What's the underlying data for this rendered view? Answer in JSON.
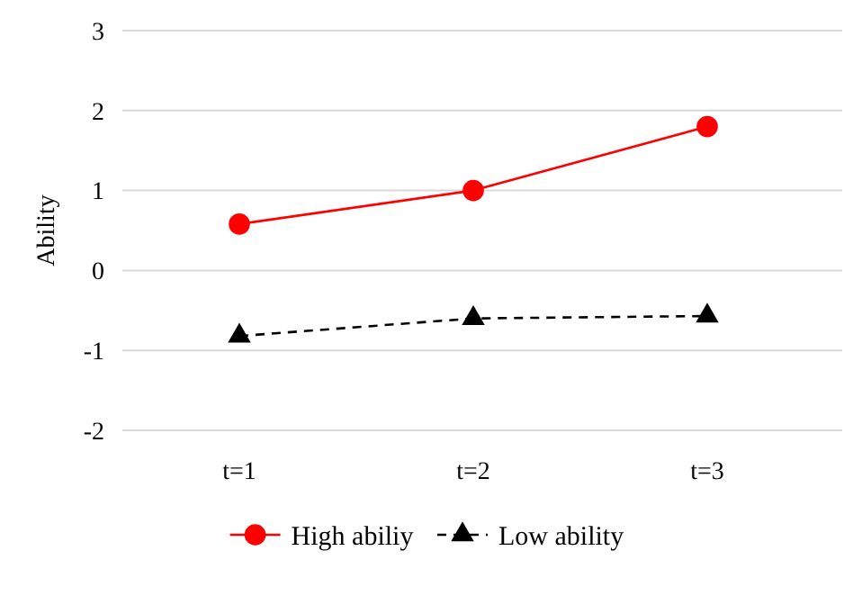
{
  "chart_data": {
    "type": "line",
    "ylabel": "Ability",
    "categories": [
      "t=1",
      "t=2",
      "t=3"
    ],
    "series": [
      {
        "name": "High abiliy",
        "color": "#ff0000",
        "values": [
          0.58,
          1.0,
          1.8
        ],
        "marker": "circle",
        "line_style": "solid"
      },
      {
        "name": "Low ability",
        "color": "#000000",
        "values": [
          -0.82,
          -0.6,
          -0.57
        ],
        "marker": "triangle",
        "line_style": "dashed"
      }
    ],
    "ylim": [
      -2,
      3
    ],
    "yticks": [
      -2,
      -1,
      0,
      1,
      2,
      3
    ],
    "grid": "y",
    "legend": "bottom"
  }
}
